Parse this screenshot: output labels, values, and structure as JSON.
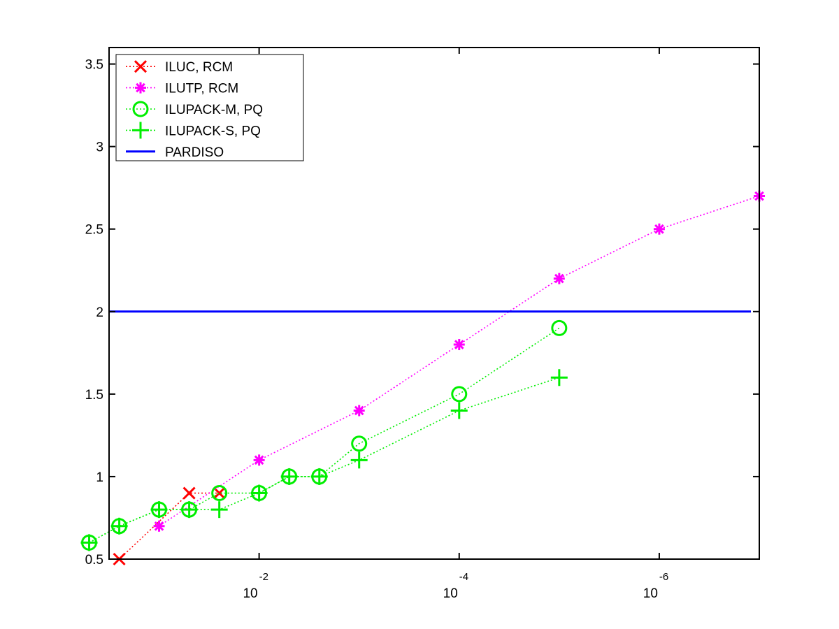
{
  "chart_data": {
    "type": "line",
    "x_axis": {
      "scale": "log",
      "reversed": true,
      "range": [
        0.3162,
        1e-07
      ],
      "ticks": [
        {
          "value": 0.01,
          "base": "10",
          "exp": "-2"
        },
        {
          "value": 0.0001,
          "base": "10",
          "exp": "-4"
        },
        {
          "value": 1e-06,
          "base": "10",
          "exp": "-6"
        }
      ]
    },
    "y_axis": {
      "range": [
        0.5,
        3.6
      ],
      "ticks": [
        "0.5",
        "1",
        "1.5",
        "2",
        "2.5",
        "3",
        "3.5"
      ]
    },
    "grid": false,
    "legend_position": "top-left",
    "series": [
      {
        "name": "ILUC, RCM",
        "color": "#ff0000",
        "marker": "x",
        "line": "dotted",
        "points": [
          [
            0.25,
            0.5
          ],
          [
            0.05,
            0.9
          ],
          [
            0.025,
            0.9
          ]
        ]
      },
      {
        "name": "ILUTP, RCM",
        "color": "#ff00ff",
        "marker": "star",
        "line": "dotted",
        "points": [
          [
            0.1,
            0.7
          ],
          [
            0.01,
            1.1
          ],
          [
            0.001,
            1.4
          ],
          [
            0.0001,
            1.8
          ],
          [
            1e-05,
            2.2
          ],
          [
            1e-06,
            2.5
          ],
          [
            1e-07,
            2.7
          ]
        ]
      },
      {
        "name": "ILUPACK-M, PQ",
        "color": "#00ee00",
        "marker": "circle",
        "line": "dotted",
        "points": [
          [
            0.5,
            0.6
          ],
          [
            0.25,
            0.7
          ],
          [
            0.1,
            0.8
          ],
          [
            0.05,
            0.8
          ],
          [
            0.025,
            0.9
          ],
          [
            0.01,
            0.9
          ],
          [
            0.005,
            1.0
          ],
          [
            0.0025,
            1.0
          ],
          [
            0.001,
            1.2
          ],
          [
            0.0001,
            1.5
          ],
          [
            1e-05,
            1.9
          ]
        ]
      },
      {
        "name": "ILUPACK-S, PQ",
        "color": "#00ee00",
        "marker": "plus",
        "line": "dotted",
        "points": [
          [
            0.5,
            0.6
          ],
          [
            0.25,
            0.7
          ],
          [
            0.1,
            0.8
          ],
          [
            0.05,
            0.8
          ],
          [
            0.025,
            0.8
          ],
          [
            0.01,
            0.9
          ],
          [
            0.005,
            1.0
          ],
          [
            0.0025,
            1.0
          ],
          [
            0.001,
            1.1
          ],
          [
            0.0001,
            1.4
          ],
          [
            1e-05,
            1.6
          ]
        ]
      },
      {
        "name": "PARDISO",
        "color": "#0000ff",
        "marker": "none",
        "line": "solid",
        "value": 2.0
      }
    ]
  }
}
